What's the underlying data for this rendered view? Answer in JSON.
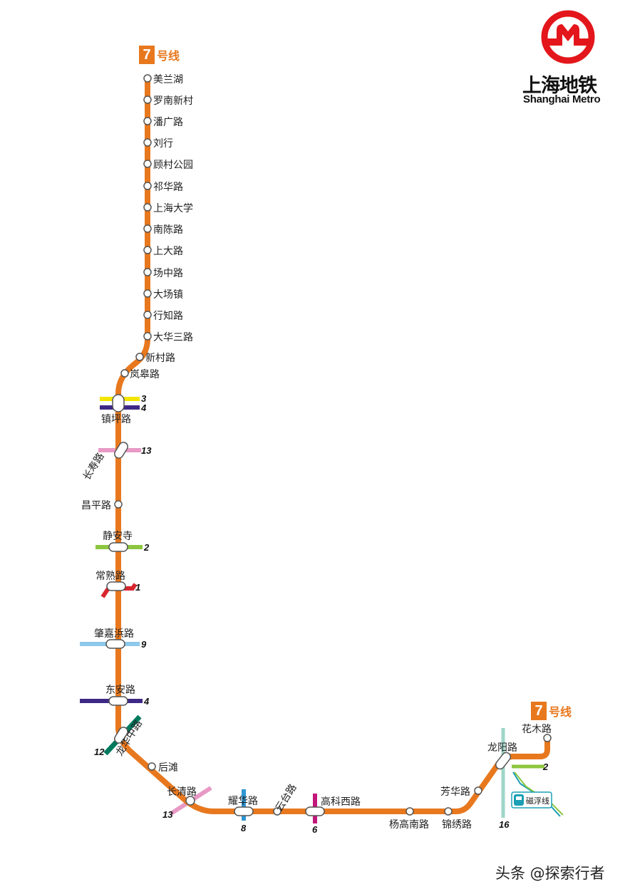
{
  "line_label": {
    "number": "7",
    "text": "号线"
  },
  "brand": {
    "name_zh": "上海地铁",
    "name_en": "Shanghai Metro"
  },
  "watermark": "头条 @探索行者",
  "colors": {
    "line7": "#e8781e",
    "line1": "#d8262e",
    "line2": "#8cc63f",
    "line3": "#f2e500",
    "line4": "#3e2885",
    "line6": "#c2177a",
    "line8": "#2f96d3",
    "line9": "#8dc8ea",
    "line12": "#007a5e",
    "line13": "#e899c5",
    "line16": "#9ed6c7",
    "maglev": "#1b9fb5",
    "logo": "#e3161b"
  },
  "maglev": {
    "label": "磁浮线",
    "icon": "maglev-train-icon"
  },
  "stations": [
    {
      "id": "meilanhu",
      "name": "美兰湖",
      "transfers": []
    },
    {
      "id": "luonanxincun",
      "name": "罗南新村",
      "transfers": []
    },
    {
      "id": "panguanglu",
      "name": "潘广路",
      "transfers": []
    },
    {
      "id": "liuhang",
      "name": "刘行",
      "transfers": []
    },
    {
      "id": "gucungongyuan",
      "name": "顾村公园",
      "transfers": []
    },
    {
      "id": "qihualu",
      "name": "祁华路",
      "transfers": []
    },
    {
      "id": "shanghaidaxue",
      "name": "上海大学",
      "transfers": []
    },
    {
      "id": "nanchenlu",
      "name": "南陈路",
      "transfers": []
    },
    {
      "id": "shangdalu",
      "name": "上大路",
      "transfers": []
    },
    {
      "id": "changzhonglu",
      "name": "场中路",
      "transfers": []
    },
    {
      "id": "dachangzhen",
      "name": "大场镇",
      "transfers": []
    },
    {
      "id": "xingzhilu",
      "name": "行知路",
      "transfers": []
    },
    {
      "id": "dahuasanlu",
      "name": "大华三路",
      "transfers": []
    },
    {
      "id": "xincunlu",
      "name": "新村路",
      "transfers": []
    },
    {
      "id": "langaolu",
      "name": "岚皋路",
      "transfers": []
    },
    {
      "id": "zhenpinglu",
      "name": "镇坪路",
      "transfers": [
        "3",
        "4"
      ]
    },
    {
      "id": "changshoulu",
      "name": "长寿路",
      "transfers": [
        "13"
      ]
    },
    {
      "id": "changpinglu",
      "name": "昌平路",
      "transfers": []
    },
    {
      "id": "jingansi",
      "name": "静安寺",
      "transfers": [
        "2"
      ]
    },
    {
      "id": "changshulu",
      "name": "常熟路",
      "transfers": [
        "1"
      ]
    },
    {
      "id": "zhaojiabanglu",
      "name": "肇嘉浜路",
      "transfers": [
        "9"
      ]
    },
    {
      "id": "donganlu",
      "name": "东安路",
      "transfers": [
        "4"
      ]
    },
    {
      "id": "longhuazhonglu",
      "name": "龙华中路",
      "transfers": [
        "12"
      ]
    },
    {
      "id": "houtan",
      "name": "后滩",
      "transfers": []
    },
    {
      "id": "changqinglu",
      "name": "长清路",
      "transfers": [
        "13"
      ]
    },
    {
      "id": "yaohualu",
      "name": "耀华路",
      "transfers": [
        "8"
      ]
    },
    {
      "id": "yuntailu",
      "name": "云台路",
      "transfers": []
    },
    {
      "id": "gaokexilu",
      "name": "高科西路",
      "transfers": [
        "6"
      ]
    },
    {
      "id": "yanggaonanlu",
      "name": "杨高南路",
      "transfers": []
    },
    {
      "id": "jinxiulu",
      "name": "锦绣路",
      "transfers": []
    },
    {
      "id": "fanghualu",
      "name": "芳华路",
      "transfers": []
    },
    {
      "id": "longyanglu",
      "name": "龙阳路",
      "transfers": [
        "2",
        "16",
        "磁浮线"
      ]
    },
    {
      "id": "huamulu",
      "name": "花木路",
      "transfers": []
    }
  ]
}
